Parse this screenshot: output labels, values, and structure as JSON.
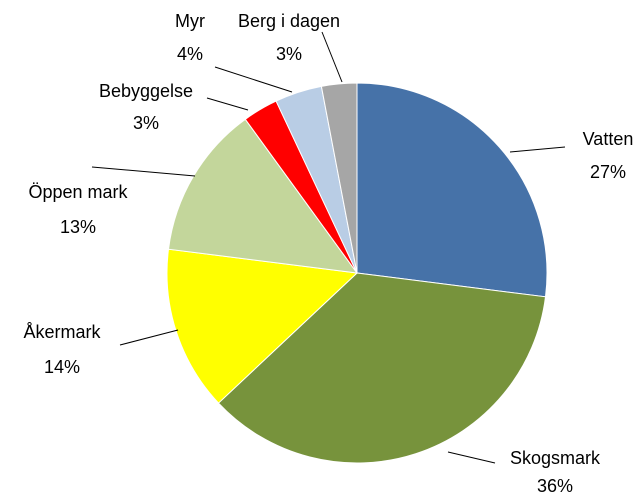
{
  "chart_data": {
    "type": "pie",
    "categories": [
      "Vatten",
      "Skogsmark",
      "Åkermark",
      "Öppen mark",
      "Bebyggelse",
      "Myr",
      "Berg i dagen"
    ],
    "values": [
      27,
      36,
      14,
      13,
      3,
      4,
      3
    ],
    "value_labels": [
      "27%",
      "36%",
      "14%",
      "13%",
      "3%",
      "4%",
      "3%"
    ],
    "colors": [
      "#4672a8",
      "#77933c",
      "#ffff00",
      "#c3d69b",
      "#ff0000",
      "#b9cde5",
      "#a6a6a6"
    ]
  }
}
